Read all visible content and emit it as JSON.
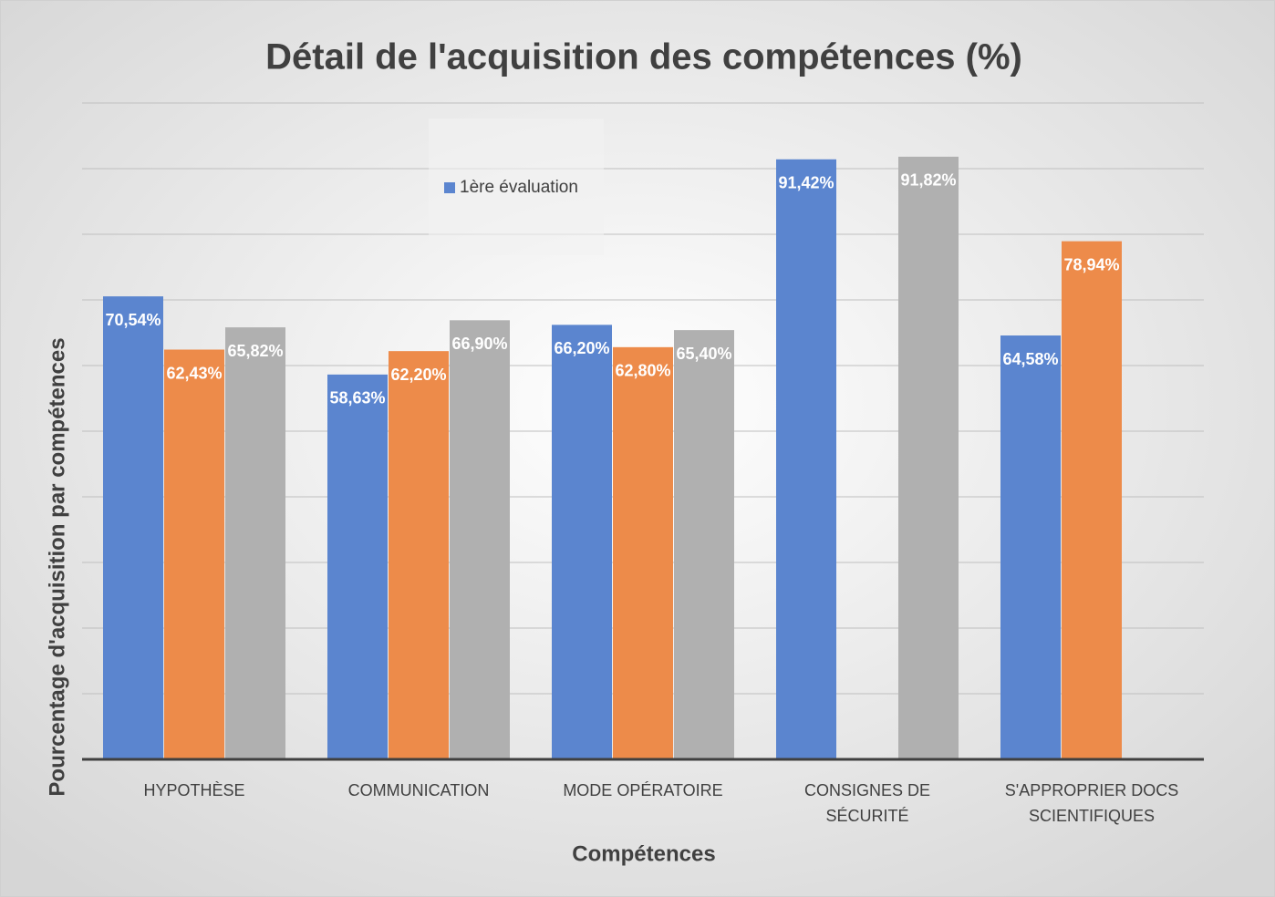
{
  "chart_data": {
    "type": "bar",
    "title": "Détail de l'acquisition des compétences (%)",
    "x_label": "Compétences",
    "y_label": "Pourcentage d'acquisition par compétences",
    "categories": [
      "HYPOTHÈSE",
      "COMMUNICATION",
      "MODE OPÉRATOIRE",
      "CONSIGNES DE SÉCURITÉ",
      "S'APPROPRIER DOCS SCIENTIFIQUES"
    ],
    "series": [
      {
        "name": "1ère évaluation",
        "color": "#5b85cf",
        "values": [
          70.54,
          58.63,
          66.2,
          91.42,
          64.58
        ],
        "value_labels": [
          "70,54%",
          "58,63%",
          "66,20%",
          "91,42%",
          "64,58%"
        ]
      },
      {
        "color": "#ed8b4a",
        "values": [
          62.43,
          62.2,
          62.8,
          null,
          78.94
        ],
        "value_labels": [
          "62,43%",
          "62,20%",
          "62,80%",
          null,
          "78,94%"
        ]
      },
      {
        "color": "#b0b0b0",
        "values": [
          65.82,
          66.9,
          65.4,
          91.82,
          null
        ],
        "value_labels": [
          "65,82%",
          "66,90%",
          "65,40%",
          "91,82%",
          null
        ]
      }
    ],
    "ylim": [
      0,
      100
    ],
    "yticks": [
      0,
      10,
      20,
      30,
      40,
      50,
      60,
      70,
      80,
      90,
      100
    ],
    "grid": true
  }
}
